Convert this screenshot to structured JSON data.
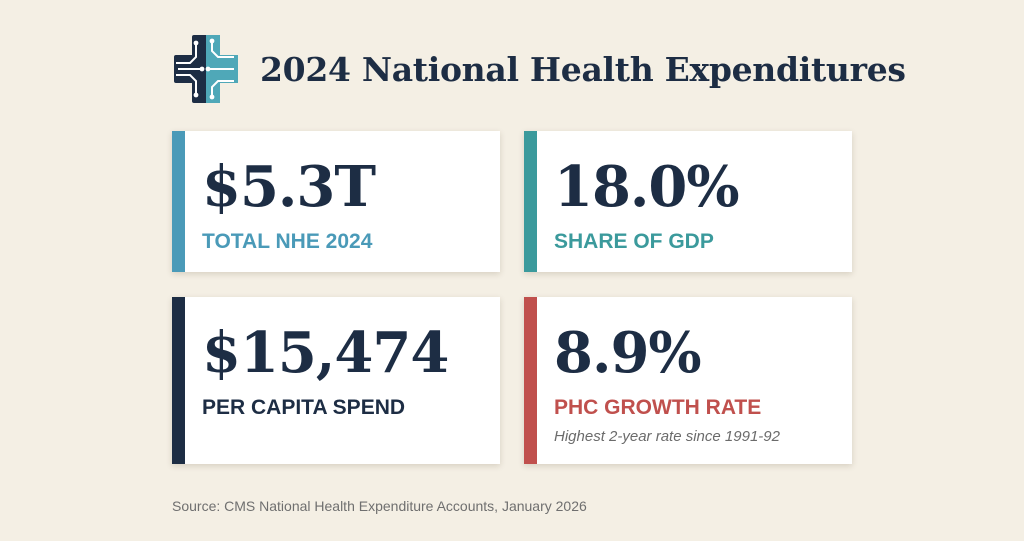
{
  "header": {
    "title": "2024 National Health Expenditures",
    "logo_icon": "medical-cross-circuit-icon"
  },
  "colors": {
    "background": "#f4efe4",
    "navy": "#1d2d44",
    "teal_blue": "#4a9ab8",
    "teal": "#3b9a9c",
    "red": "#c0504d"
  },
  "cards": [
    {
      "value": "$5.3T",
      "label": "TOTAL NHE 2024",
      "accent": "#4a9ab8",
      "label_color": "#4a9ab8"
    },
    {
      "value": "18.0%",
      "label": "SHARE OF GDP",
      "accent": "#3b9a9c",
      "label_color": "#3b9a9c"
    },
    {
      "value": "$15,474",
      "label": "PER CAPITA SPEND",
      "accent": "#1d2d44",
      "label_color": "#1d2d44"
    },
    {
      "value": "8.9%",
      "label": "PHC GROWTH RATE",
      "note": "Highest 2-year rate since 1991-92",
      "accent": "#c0504d",
      "label_color": "#c0504d"
    }
  ],
  "source": "Source: CMS National Health Expenditure Accounts, January 2026"
}
